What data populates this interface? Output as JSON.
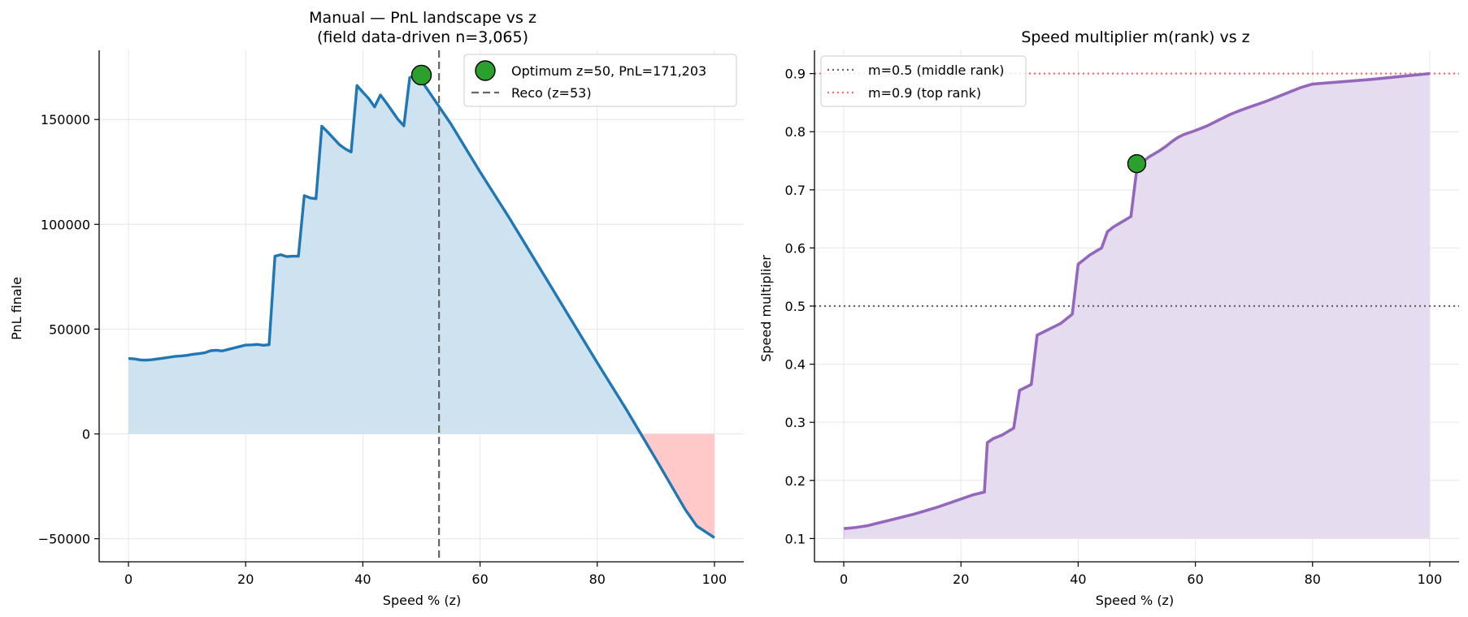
{
  "chart_data": [
    {
      "type": "area",
      "title": "Manual — PnL landscape vs z",
      "subtitle": "(field data-driven n=3,065)",
      "xlabel": "Speed % (z)",
      "ylabel": "PnL finale",
      "xlim": [
        -5,
        105
      ],
      "ylim": [
        -61000,
        183000
      ],
      "xticks": [
        0,
        20,
        40,
        60,
        80,
        100
      ],
      "yticks": [
        -50000,
        0,
        50000,
        100000,
        150000
      ],
      "ytick_labels": [
        "−50000",
        "0",
        "50000",
        "100000",
        "150000"
      ],
      "grid": true,
      "legend_position": "top-right",
      "colors": {
        "line": "#1f77b4",
        "fill_positive": "#cfe2f0",
        "fill_negative": "#ffc9c9",
        "marker": "#2ca02c",
        "vline": "#666666"
      },
      "series": [
        {
          "name": "",
          "x": [
            0,
            1,
            2,
            3,
            4,
            5,
            6,
            7,
            8,
            9,
            10,
            11,
            12,
            13,
            14,
            15,
            16,
            17,
            18,
            19,
            20,
            21,
            22,
            23,
            24,
            25,
            26,
            27,
            28,
            29,
            30,
            31,
            32,
            33,
            34,
            35,
            36,
            37,
            38,
            39,
            40,
            41,
            42,
            43,
            44,
            45,
            46,
            47,
            48,
            49,
            50,
            55,
            60,
            65,
            70,
            75,
            80,
            85,
            90,
            95,
            97,
            100
          ],
          "y": [
            36000,
            35800,
            35300,
            35200,
            35400,
            35800,
            36200,
            36600,
            37000,
            37200,
            37500,
            38000,
            38300,
            38700,
            39700,
            39900,
            39600,
            40300,
            41000,
            41700,
            42400,
            42500,
            42700,
            42300,
            42600,
            84800,
            85500,
            84600,
            84800,
            84800,
            113700,
            112600,
            112200,
            146800,
            144000,
            141000,
            138000,
            136000,
            134500,
            166200,
            163000,
            160000,
            156000,
            161700,
            158000,
            154000,
            150000,
            147000,
            170000,
            171000,
            168500,
            148000,
            125000,
            103000,
            80000,
            57000,
            34000,
            11500,
            -12000,
            -36000,
            -44000,
            -49500
          ]
        }
      ],
      "optimum": {
        "x": 50,
        "y": 171203,
        "label": "Optimum z=50, PnL=171,203"
      },
      "reco": {
        "x": 53,
        "label": "Reco (z=53)"
      }
    },
    {
      "type": "area",
      "title": "Speed multiplier m(rank) vs z",
      "xlabel": "Speed % (z)",
      "ylabel": "Speed multiplier",
      "xlim": [
        -5,
        105
      ],
      "ylim": [
        0.06,
        0.94
      ],
      "xticks": [
        0,
        20,
        40,
        60,
        80,
        100
      ],
      "yticks": [
        0.1,
        0.2,
        0.3,
        0.4,
        0.5,
        0.6,
        0.7,
        0.8,
        0.9
      ],
      "grid": true,
      "legend_position": "top-left",
      "colors": {
        "line": "#9467bd",
        "fill": "#e6dcef",
        "marker": "#2ca02c",
        "middle": "#666666",
        "top": "#ff6b6b"
      },
      "series": [
        {
          "name": "",
          "x": [
            0,
            2,
            4,
            6,
            8,
            10,
            12,
            14,
            16,
            18,
            20,
            22,
            24,
            24.5,
            25.5,
            27,
            28,
            29,
            30,
            31,
            32,
            33,
            34,
            35,
            36,
            37,
            38,
            39,
            40,
            41,
            42,
            43,
            44,
            45,
            46,
            47,
            48,
            49,
            50,
            51,
            52,
            53,
            54,
            55,
            56,
            57,
            58,
            60,
            62,
            64,
            66,
            68,
            70,
            72,
            74,
            76,
            78,
            80,
            85,
            90,
            95,
            100
          ],
          "y": [
            0.117,
            0.119,
            0.122,
            0.127,
            0.132,
            0.137,
            0.142,
            0.148,
            0.154,
            0.161,
            0.168,
            0.175,
            0.18,
            0.265,
            0.272,
            0.278,
            0.284,
            0.29,
            0.355,
            0.36,
            0.365,
            0.45,
            0.455,
            0.46,
            0.465,
            0.47,
            0.478,
            0.486,
            0.572,
            0.58,
            0.588,
            0.594,
            0.6,
            0.628,
            0.636,
            0.642,
            0.648,
            0.654,
            0.735,
            0.748,
            0.756,
            0.762,
            0.768,
            0.775,
            0.783,
            0.79,
            0.795,
            0.802,
            0.81,
            0.82,
            0.83,
            0.838,
            0.845,
            0.852,
            0.86,
            0.868,
            0.876,
            0.882,
            0.886,
            0.89,
            0.895,
            0.9
          ]
        }
      ],
      "highlight": {
        "x": 50,
        "y": 0.745
      },
      "reference_lines": [
        {
          "y": 0.5,
          "label": "m=0.5 (middle rank)"
        },
        {
          "y": 0.9,
          "label": "m=0.9 (top rank)"
        }
      ]
    }
  ]
}
